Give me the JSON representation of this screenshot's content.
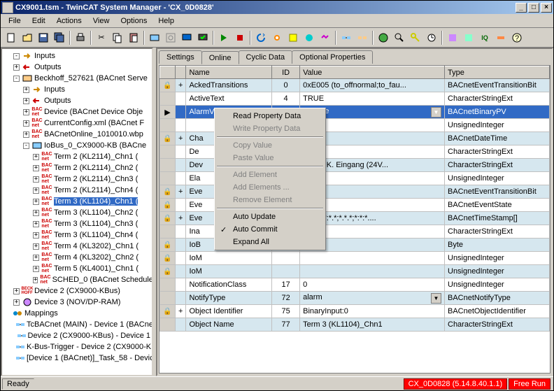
{
  "window": {
    "title": "CX9001.tsm - TwinCAT System Manager - 'CX_0D0828'"
  },
  "menu": [
    "File",
    "Edit",
    "Actions",
    "View",
    "Options",
    "Help"
  ],
  "tree": [
    {
      "d": 0,
      "e": "-",
      "i": "in",
      "t": "Inputs"
    },
    {
      "d": 0,
      "e": "+",
      "i": "out",
      "t": "Outputs"
    },
    {
      "d": 0,
      "e": "-",
      "i": "dev",
      "t": "Beckhoff_527621 (BACnet Serve"
    },
    {
      "d": 1,
      "e": "+",
      "i": "in",
      "t": "Inputs"
    },
    {
      "d": 1,
      "e": "+",
      "i": "out",
      "t": "Outputs"
    },
    {
      "d": 1,
      "e": "+",
      "i": "bac",
      "t": "Device (BACnet Device Obje"
    },
    {
      "d": 1,
      "e": "+",
      "i": "bac",
      "t": "CurrentConfig.xml (BACnet F"
    },
    {
      "d": 1,
      "e": "+",
      "i": "bac",
      "t": "BACnetOnline_1010010.wbp"
    },
    {
      "d": 1,
      "e": "-",
      "i": "io",
      "t": "IoBus_0_CX9000-KB (BACne"
    },
    {
      "d": 2,
      "e": "+",
      "i": "bac",
      "t": "Term 2 (KL2114)_Chn1 ("
    },
    {
      "d": 2,
      "e": "+",
      "i": "bac",
      "t": "Term 2 (KL2114)_Chn2 ("
    },
    {
      "d": 2,
      "e": "+",
      "i": "bac",
      "t": "Term 2 (KL2114)_Chn3 ("
    },
    {
      "d": 2,
      "e": "+",
      "i": "bac",
      "t": "Term 2 (KL2114)_Chn4 ("
    },
    {
      "d": 2,
      "e": "+",
      "i": "bac",
      "t": "Term 3 (KL1104)_Chn1 (",
      "sel": true
    },
    {
      "d": 2,
      "e": "+",
      "i": "bac",
      "t": "Term 3 (KL1104)_Chn2 ("
    },
    {
      "d": 2,
      "e": "+",
      "i": "bac",
      "t": "Term 3 (KL1104)_Chn3 ("
    },
    {
      "d": 2,
      "e": "+",
      "i": "bac",
      "t": "Term 3 (KL1104)_Chn4 ("
    },
    {
      "d": 2,
      "e": "+",
      "i": "bac",
      "t": "Term 4 (KL3202)_Chn1 ("
    },
    {
      "d": 2,
      "e": "+",
      "i": "bac",
      "t": "Term 4 (KL3202)_Chn2 ("
    },
    {
      "d": 2,
      "e": "+",
      "i": "bac",
      "t": "Term 5 (KL4001)_Chn1 ("
    },
    {
      "d": 2,
      "e": "+",
      "i": "bac",
      "t": "SCHED_0 (BACnet Schedule"
    },
    {
      "d": 0,
      "e": "+",
      "i": "beck",
      "t": "Device 2 (CX9000-KBus)"
    },
    {
      "d": 0,
      "e": "+",
      "i": "dp",
      "t": "Device 3 (NOV/DP-RAM)"
    },
    {
      "d": -1,
      "e": "",
      "i": "map",
      "t": "Mappings"
    },
    {
      "d": 0,
      "e": "",
      "i": "link",
      "t": "TcBACnet (MAIN) - Device 1 (BACne"
    },
    {
      "d": 0,
      "e": "",
      "i": "link",
      "t": "Device 2 (CX9000-KBus) - Device 1"
    },
    {
      "d": 0,
      "e": "",
      "i": "link",
      "t": "K-Bus-Trigger - Device 2 (CX9000-KB"
    },
    {
      "d": 0,
      "e": "",
      "i": "link",
      "t": "[Device 1 (BACnet)]_Task_58 - Devic"
    }
  ],
  "tabs": [
    "Settings",
    "Online",
    "Cyclic Data",
    "Optional Properties"
  ],
  "active_tab": 1,
  "cols": [
    "",
    "",
    "Name",
    "ID",
    "Value",
    "Type"
  ],
  "rows": [
    {
      "l": "🔒",
      "e": "+",
      "n": "AckedTransitions",
      "id": "0",
      "v": "0xE005 (to_offnormal;to_fau...",
      "t": "BACnetEventTransitionBit"
    },
    {
      "l": "",
      "e": "",
      "n": "ActiveText",
      "id": "4",
      "v": "TRUE",
      "t": "CharacterStringExt"
    },
    {
      "l": "▶",
      "e": "",
      "n": "AlarmValue",
      "id": "6",
      "v": "inactive",
      "t": "BACnetBinaryPV",
      "sel": true,
      "dd": true
    },
    {
      "l": "",
      "e": "",
      "n": "",
      "id": "",
      "v": "",
      "t": "UnsignedInteger"
    },
    {
      "l": "🔒",
      "e": "+",
      "n": "Cha",
      "id": "",
      "v": "*.*.*",
      "t": "BACnetDateTime"
    },
    {
      "l": "",
      "e": "",
      "n": "De",
      "id": "",
      "v": "",
      "t": "CharacterStringExt"
    },
    {
      "l": "",
      "e": "",
      "n": "Dev",
      "id": "",
      "v": "104, 4 K. Eingang (24V...",
      "t": "CharacterStringExt"
    },
    {
      "l": "",
      "e": "",
      "n": "Ela",
      "id": "",
      "v": "",
      "t": "UnsignedInteger"
    },
    {
      "l": "🔒",
      "e": "+",
      "n": "Eve",
      "id": "",
      "v": "05",
      "t": "BACnetEventTransitionBit"
    },
    {
      "l": "🔒",
      "e": "",
      "n": "Eve",
      "id": "",
      "v": "rmal",
      "t": "BACnetEventState"
    },
    {
      "l": "🔒",
      "e": "+",
      "n": "Eve",
      "id": "",
      "v": "*.*.*;*:*:*.*;*.*.*;*:*:*....",
      "t": "BACnetTimeStamp[]"
    },
    {
      "l": "",
      "e": "",
      "n": "Ina",
      "id": "",
      "v": "E",
      "t": "CharacterStringExt"
    },
    {
      "l": "🔒",
      "e": "",
      "n": "IoB",
      "id": "",
      "v": "",
      "t": "Byte"
    },
    {
      "l": "🔒",
      "e": "",
      "n": "IoM",
      "id": "",
      "v": "",
      "t": "UnsignedInteger"
    },
    {
      "l": "🔒",
      "e": "",
      "n": "IoM",
      "id": "",
      "v": "",
      "t": "UnsignedInteger"
    },
    {
      "l": "",
      "e": "",
      "n": "NotificationClass",
      "id": "17",
      "v": "0",
      "t": "UnsignedInteger"
    },
    {
      "l": "",
      "e": "",
      "n": "NotifyType",
      "id": "72",
      "v": "alarm",
      "t": "BACnetNotifyType",
      "dd": true
    },
    {
      "l": "🔒",
      "e": "+",
      "n": "Object Identifier",
      "id": "75",
      "v": "BinaryInput:0",
      "t": "BACnetObjectIdentifier"
    },
    {
      "l": "",
      "e": "",
      "n": "Object Name",
      "id": "77",
      "v": "Term 3 (KL1104)_Chn1",
      "t": "CharacterStringExt"
    }
  ],
  "ctx": [
    {
      "t": "Read Property Data"
    },
    {
      "t": "Write Property Data",
      "dis": true
    },
    {
      "sep": true
    },
    {
      "t": "Copy Value",
      "dis": true
    },
    {
      "t": "Paste Value",
      "dis": true
    },
    {
      "sep": true
    },
    {
      "t": "Add Element",
      "dis": true
    },
    {
      "t": "Add Elements ...",
      "dis": true
    },
    {
      "t": "Remove Element",
      "dis": true
    },
    {
      "sep": true
    },
    {
      "t": "Auto Update"
    },
    {
      "t": "Auto Commit",
      "chk": true
    },
    {
      "t": "Expand All"
    }
  ],
  "status": {
    "ready": "Ready",
    "host": "CX_0D0828 (5.14.8.40.1.1)",
    "mode": "Free Run"
  }
}
